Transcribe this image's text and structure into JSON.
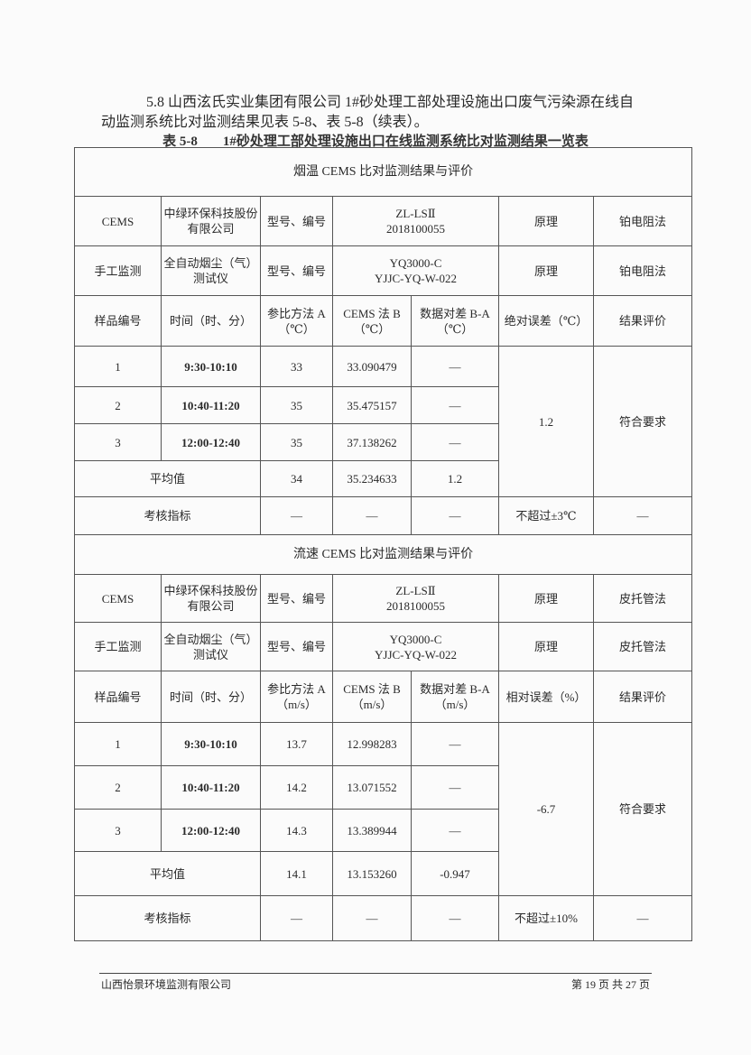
{
  "paragraph": {
    "line1": "5.8 山西泫氏实业集团有限公司 1#砂处理工部处理设施出口废气污染源在线自",
    "line2": "动监测系统比对监测结果见表 5-8、表 5-8（续表）。"
  },
  "caption": {
    "number": "表 5-8",
    "title": "1#砂处理工部处理设施出口在线监测系统比对监测结果一览表"
  },
  "sections": [
    {
      "title": "烟温 CEMS 比对监测结果与评价",
      "cems": {
        "label": "CEMS",
        "maker": "中绿环保科技股份有限公司",
        "model_label": "型号、编号",
        "model": "ZL-LSⅡ",
        "serial": "2018100055",
        "principle_label": "原理",
        "principle": "铂电阻法"
      },
      "manual": {
        "label": "手工监测",
        "maker": "全自动烟尘（气）测试仪",
        "model_label": "型号、编号",
        "model": "YQ3000-C",
        "serial": "YJJC-YQ-W-022",
        "principle_label": "原理",
        "principle": "铂电阻法"
      },
      "headers": [
        "样品编号",
        "时间（时、分）",
        "参比方法 A（℃）",
        "CEMS 法 B（℃）",
        "数据对差 B-A（℃）",
        "绝对误差（℃）",
        "结果评价"
      ],
      "rows": [
        {
          "no": "1",
          "time": "9:30-10:10",
          "a": "33",
          "b": "33.090479",
          "diff": "—"
        },
        {
          "no": "2",
          "time": "10:40-11:20",
          "a": "35",
          "b": "35.475157",
          "diff": "—"
        },
        {
          "no": "3",
          "time": "12:00-12:40",
          "a": "35",
          "b": "37.138262",
          "diff": "—"
        }
      ],
      "error": "1.2",
      "result": "符合要求",
      "average": {
        "label": "平均值",
        "a": "34",
        "b": "35.234633",
        "diff": "1.2"
      },
      "index": {
        "label": "考核指标",
        "a": "—",
        "b": "—",
        "diff": "—",
        "limit": "不超过±3℃",
        "result": "—"
      }
    },
    {
      "title": "流速 CEMS 比对监测结果与评价",
      "cems": {
        "label": "CEMS",
        "maker": "中绿环保科技股份有限公司",
        "model_label": "型号、编号",
        "model": "ZL-LSⅡ",
        "serial": "2018100055",
        "principle_label": "原理",
        "principle": "皮托管法"
      },
      "manual": {
        "label": "手工监测",
        "maker": "全自动烟尘（气）测试仪",
        "model_label": "型号、编号",
        "model": "YQ3000-C",
        "serial": "YJJC-YQ-W-022",
        "principle_label": "原理",
        "principle": "皮托管法"
      },
      "headers": [
        "样品编号",
        "时间（时、分）",
        "参比方法 A（m/s）",
        "CEMS 法 B（m/s）",
        "数据对差 B-A（m/s）",
        "相对误差（%）",
        "结果评价"
      ],
      "rows": [
        {
          "no": "1",
          "time": "9:30-10:10",
          "a": "13.7",
          "b": "12.998283",
          "diff": "—"
        },
        {
          "no": "2",
          "time": "10:40-11:20",
          "a": "14.2",
          "b": "13.071552",
          "diff": "—"
        },
        {
          "no": "3",
          "time": "12:00-12:40",
          "a": "14.3",
          "b": "13.389944",
          "diff": "—"
        }
      ],
      "error": "-6.7",
      "result": "符合要求",
      "average": {
        "label": "平均值",
        "a": "14.1",
        "b": "13.153260",
        "diff": "-0.947"
      },
      "index": {
        "label": "考核指标",
        "a": "—",
        "b": "—",
        "diff": "—",
        "limit": "不超过±10%",
        "result": "—"
      }
    }
  ],
  "footer": {
    "company": "山西怡景环境监测有限公司",
    "page": "第 19 页 共 27 页"
  }
}
